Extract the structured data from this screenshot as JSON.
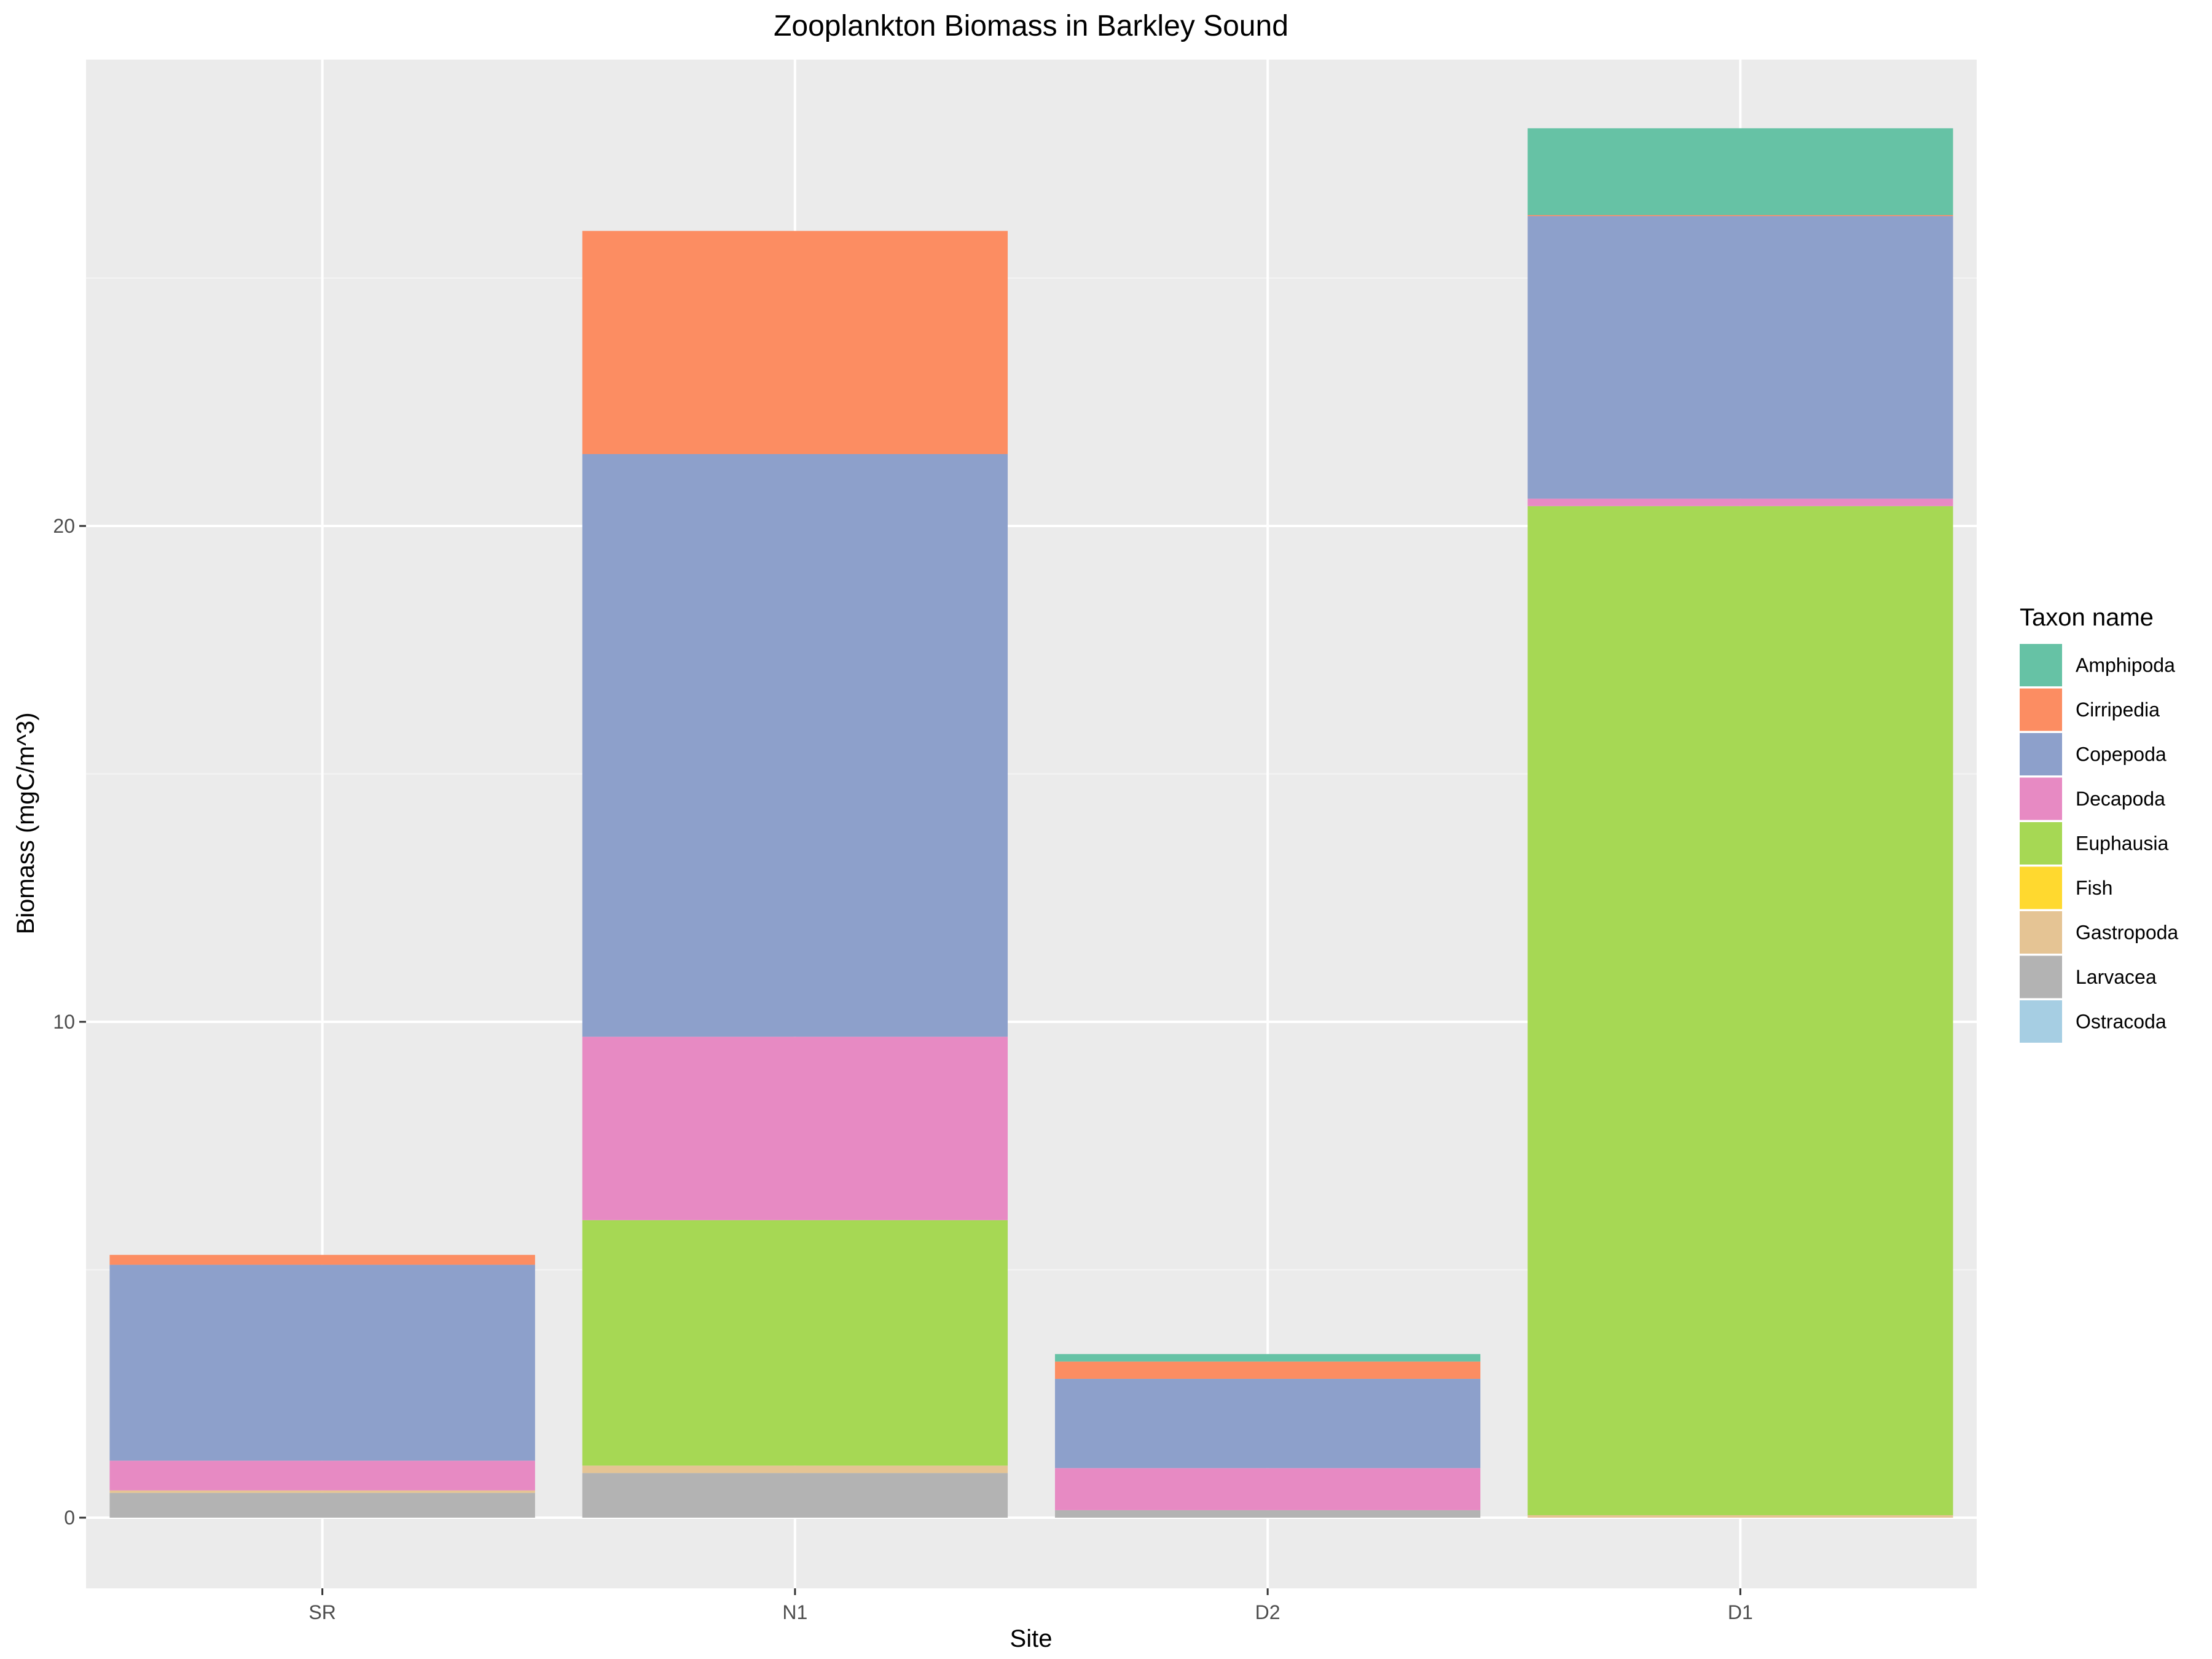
{
  "chart_data": {
    "type": "bar",
    "stacked": true,
    "title": "Zooplankton Biomass in Barkley Sound",
    "xlabel": "Site",
    "ylabel": "Biomass (mgC/m^3)",
    "categories": [
      "SR",
      "N1",
      "D2",
      "D1"
    ],
    "ylim": [
      -1.4,
      29.5
    ],
    "yticks": [
      0,
      10,
      20
    ],
    "grid": true,
    "legend": {
      "title": "Taxon name",
      "position": "right"
    },
    "stack_order_bottom_to_top": [
      "Larvacea",
      "Gastropoda",
      "Fish",
      "Euphausia",
      "Decapoda",
      "Copepoda",
      "Cirripedia",
      "Amphipoda",
      "Ostracoda"
    ],
    "series": [
      {
        "name": "Amphipoda",
        "color": "#66C2A5",
        "values": [
          0.0,
          0.0,
          0.15,
          1.75
        ]
      },
      {
        "name": "Cirripedia",
        "color": "#FC8D62",
        "values": [
          0.2,
          4.5,
          0.35,
          0.02
        ]
      },
      {
        "name": "Copepoda",
        "color": "#8DA0CB",
        "values": [
          3.95,
          11.75,
          1.8,
          5.7
        ]
      },
      {
        "name": "Decapoda",
        "color": "#E78AC3",
        "values": [
          0.6,
          3.7,
          0.85,
          0.15
        ]
      },
      {
        "name": "Euphausia",
        "color": "#A6D854",
        "values": [
          0.0,
          4.95,
          0.0,
          20.35
        ]
      },
      {
        "name": "Fish",
        "color": "#FFD92F",
        "values": [
          0.0,
          0.0,
          0.0,
          0.0
        ]
      },
      {
        "name": "Gastropoda",
        "color": "#E5C494",
        "values": [
          0.05,
          0.15,
          0.0,
          0.05
        ]
      },
      {
        "name": "Larvacea",
        "color": "#B3B3B3",
        "values": [
          0.5,
          0.9,
          0.15,
          0.0
        ]
      },
      {
        "name": "Ostracoda",
        "color": "#A6CEE3",
        "values": [
          0.0,
          0.0,
          0.0,
          0.0
        ]
      }
    ]
  },
  "colors": {
    "panel_bg": "#EBEBEB",
    "grid_major": "#FFFFFF",
    "grid_minor": "#F5F5F5"
  }
}
